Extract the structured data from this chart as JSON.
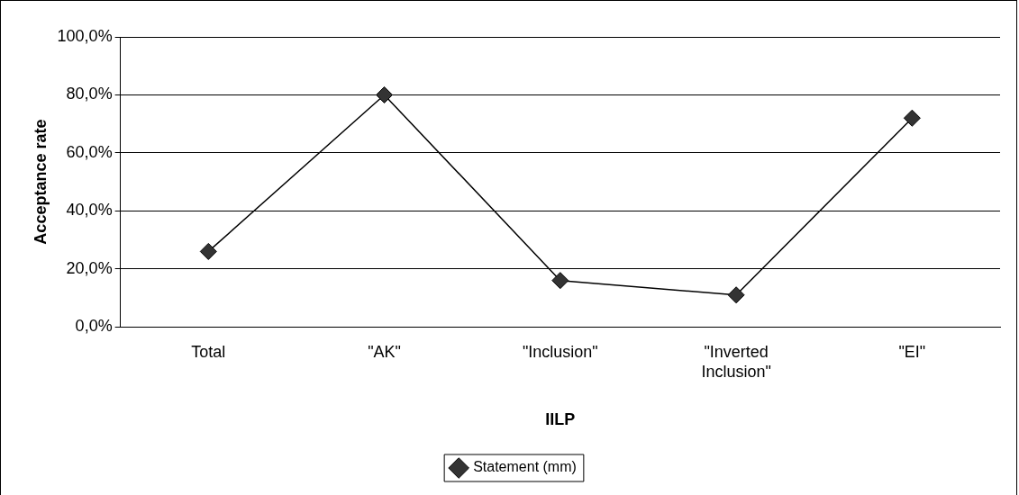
{
  "chart_data": {
    "type": "line",
    "xlabel": "IILP",
    "ylabel": "Acceptance rate",
    "categories": [
      "Total",
      "\"AK\"",
      "\"Inclusion\"",
      "\"Inverted Inclusion\"",
      "\"EI\""
    ],
    "series": [
      {
        "name": "Statement (mm)",
        "color": "#000000",
        "values": [
          26,
          80,
          16,
          11,
          72
        ]
      }
    ],
    "ylim": [
      0,
      100
    ],
    "yticks": [
      {
        "value": 0,
        "label": "0,0%"
      },
      {
        "value": 20,
        "label": "20,0%"
      },
      {
        "value": 40,
        "label": "40,0%"
      },
      {
        "value": 60,
        "label": "60,0%"
      },
      {
        "value": 80,
        "label": "80,0%"
      },
      {
        "value": 100,
        "label": "100,0%"
      }
    ],
    "grid": "y",
    "legend": "bottom",
    "marker": "diamond",
    "line_style": "solid"
  }
}
